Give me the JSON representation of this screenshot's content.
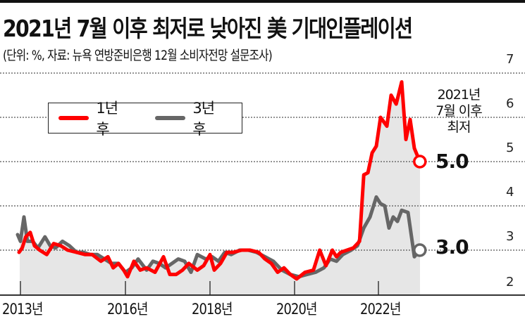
{
  "header": {
    "title": "2021년 7월 이후 최저로 낮아진 美 기대인플레이션",
    "subtitle": "(단위: %, 자료: 뉴욕 연방준비은행 12월 소비자전망 설문조사)"
  },
  "legend": {
    "items": [
      {
        "label": "1년 후",
        "color": "#ff0000"
      },
      {
        "label": "3년 후",
        "color": "#666666"
      }
    ]
  },
  "annotation": {
    "lines": [
      "2021년",
      "7월 이후",
      "최저"
    ]
  },
  "end_labels": {
    "one_year": "5.0",
    "three_year": "3.0"
  },
  "colors": {
    "red": "#ff0000",
    "gray": "#666666",
    "area": "#e6e6e6",
    "grid": "#555555"
  },
  "chart_data": {
    "type": "line",
    "title": "2021년 7월 이후 최저로 낮아진 美 기대인플레이션",
    "subtitle": "(단위: %, 자료: 뉴욕 연방준비은행 12월 소비자전망 설문조사)",
    "xlabel": "",
    "ylabel": "%",
    "ylim": [
      2,
      7
    ],
    "yticks": [
      2,
      3,
      4,
      5,
      6,
      7
    ],
    "xticks": [
      {
        "label": "2013년",
        "year": 2013
      },
      {
        "label": "2016년",
        "year": 2016
      },
      {
        "label": "2018년",
        "year": 2018
      },
      {
        "label": "2020년",
        "year": 2020
      },
      {
        "label": "2022년",
        "year": 2022
      }
    ],
    "grid": "horizontal dotted",
    "legend_position": "upper left",
    "series": [
      {
        "name": "1년 후",
        "x": [
          2012.95,
          2013.05,
          2013.15,
          2013.28,
          2013.4,
          2013.55,
          2013.75,
          2013.95,
          2014.15,
          2014.35,
          2014.6,
          2014.85,
          2015.05,
          2015.3,
          2015.5,
          2015.65,
          2015.8,
          2015.95,
          2016.05,
          2016.2,
          2016.35,
          2016.5,
          2016.7,
          2016.9,
          2017.05,
          2017.2,
          2017.35,
          2017.5,
          2017.7,
          2017.85,
          2018.0,
          2018.1,
          2018.25,
          2018.4,
          2018.55,
          2018.75,
          2018.95,
          2019.15,
          2019.3,
          2019.45,
          2019.6,
          2019.75,
          2019.9,
          2020.05,
          2020.25,
          2020.45,
          2020.6,
          2020.75,
          2020.9,
          2021.0,
          2021.1,
          2021.25,
          2021.4,
          2021.55,
          2021.65,
          2021.75,
          2021.85,
          2021.95,
          2022.05,
          2022.2,
          2022.3,
          2022.42,
          2022.55,
          2022.65,
          2022.75,
          2022.85,
          2022.98
        ],
        "values": [
          2.95,
          3.05,
          3.3,
          3.4,
          3.1,
          3.0,
          2.9,
          3.15,
          3.1,
          3.0,
          2.95,
          2.9,
          2.9,
          2.75,
          2.85,
          2.6,
          2.7,
          2.55,
          2.4,
          2.75,
          2.55,
          2.6,
          2.5,
          2.85,
          2.45,
          2.45,
          2.55,
          2.7,
          2.55,
          2.65,
          2.9,
          2.55,
          2.7,
          2.95,
          2.95,
          3.0,
          3.0,
          2.95,
          2.8,
          2.7,
          2.5,
          2.6,
          2.45,
          2.35,
          2.5,
          2.55,
          3.0,
          2.65,
          3.0,
          2.85,
          2.95,
          3.0,
          3.05,
          3.2,
          4.7,
          4.75,
          5.2,
          5.35,
          6.0,
          5.8,
          6.5,
          6.3,
          6.8,
          5.5,
          5.95,
          5.3,
          5.0
        ]
      },
      {
        "name": "3년 후",
        "x": [
          2012.9,
          2013.0,
          2013.1,
          2013.2,
          2013.35,
          2013.5,
          2013.7,
          2013.85,
          2014.0,
          2014.2,
          2014.4,
          2014.6,
          2014.8,
          2015.0,
          2015.2,
          2015.4,
          2015.6,
          2015.8,
          2016.0,
          2016.15,
          2016.3,
          2016.5,
          2016.65,
          2016.8,
          2016.95,
          2017.1,
          2017.25,
          2017.4,
          2017.55,
          2017.7,
          2017.9,
          2018.05,
          2018.2,
          2018.35,
          2018.5,
          2018.7,
          2018.9,
          2019.1,
          2019.3,
          2019.5,
          2019.7,
          2019.9,
          2020.1,
          2020.3,
          2020.5,
          2020.7,
          2020.85,
          2021.0,
          2021.15,
          2021.35,
          2021.5,
          2021.65,
          2021.8,
          2021.95,
          2022.05,
          2022.15,
          2022.25,
          2022.35,
          2022.45,
          2022.55,
          2022.7,
          2022.85,
          2022.98
        ],
        "values": [
          3.35,
          3.2,
          3.75,
          3.2,
          3.2,
          3.05,
          3.3,
          3.1,
          3.05,
          3.2,
          3.1,
          2.95,
          2.95,
          2.9,
          2.9,
          2.8,
          2.7,
          2.7,
          2.5,
          2.6,
          2.8,
          2.55,
          2.75,
          2.7,
          2.6,
          2.7,
          2.8,
          2.75,
          2.5,
          2.9,
          2.8,
          2.85,
          2.75,
          2.95,
          2.9,
          3.0,
          3.0,
          2.95,
          2.85,
          2.75,
          2.55,
          2.45,
          2.4,
          2.45,
          2.5,
          2.6,
          2.8,
          2.75,
          2.9,
          3.0,
          3.1,
          3.5,
          3.75,
          4.2,
          4.05,
          4.0,
          3.5,
          3.75,
          3.65,
          3.9,
          3.85,
          2.85,
          3.0
        ]
      }
    ]
  }
}
